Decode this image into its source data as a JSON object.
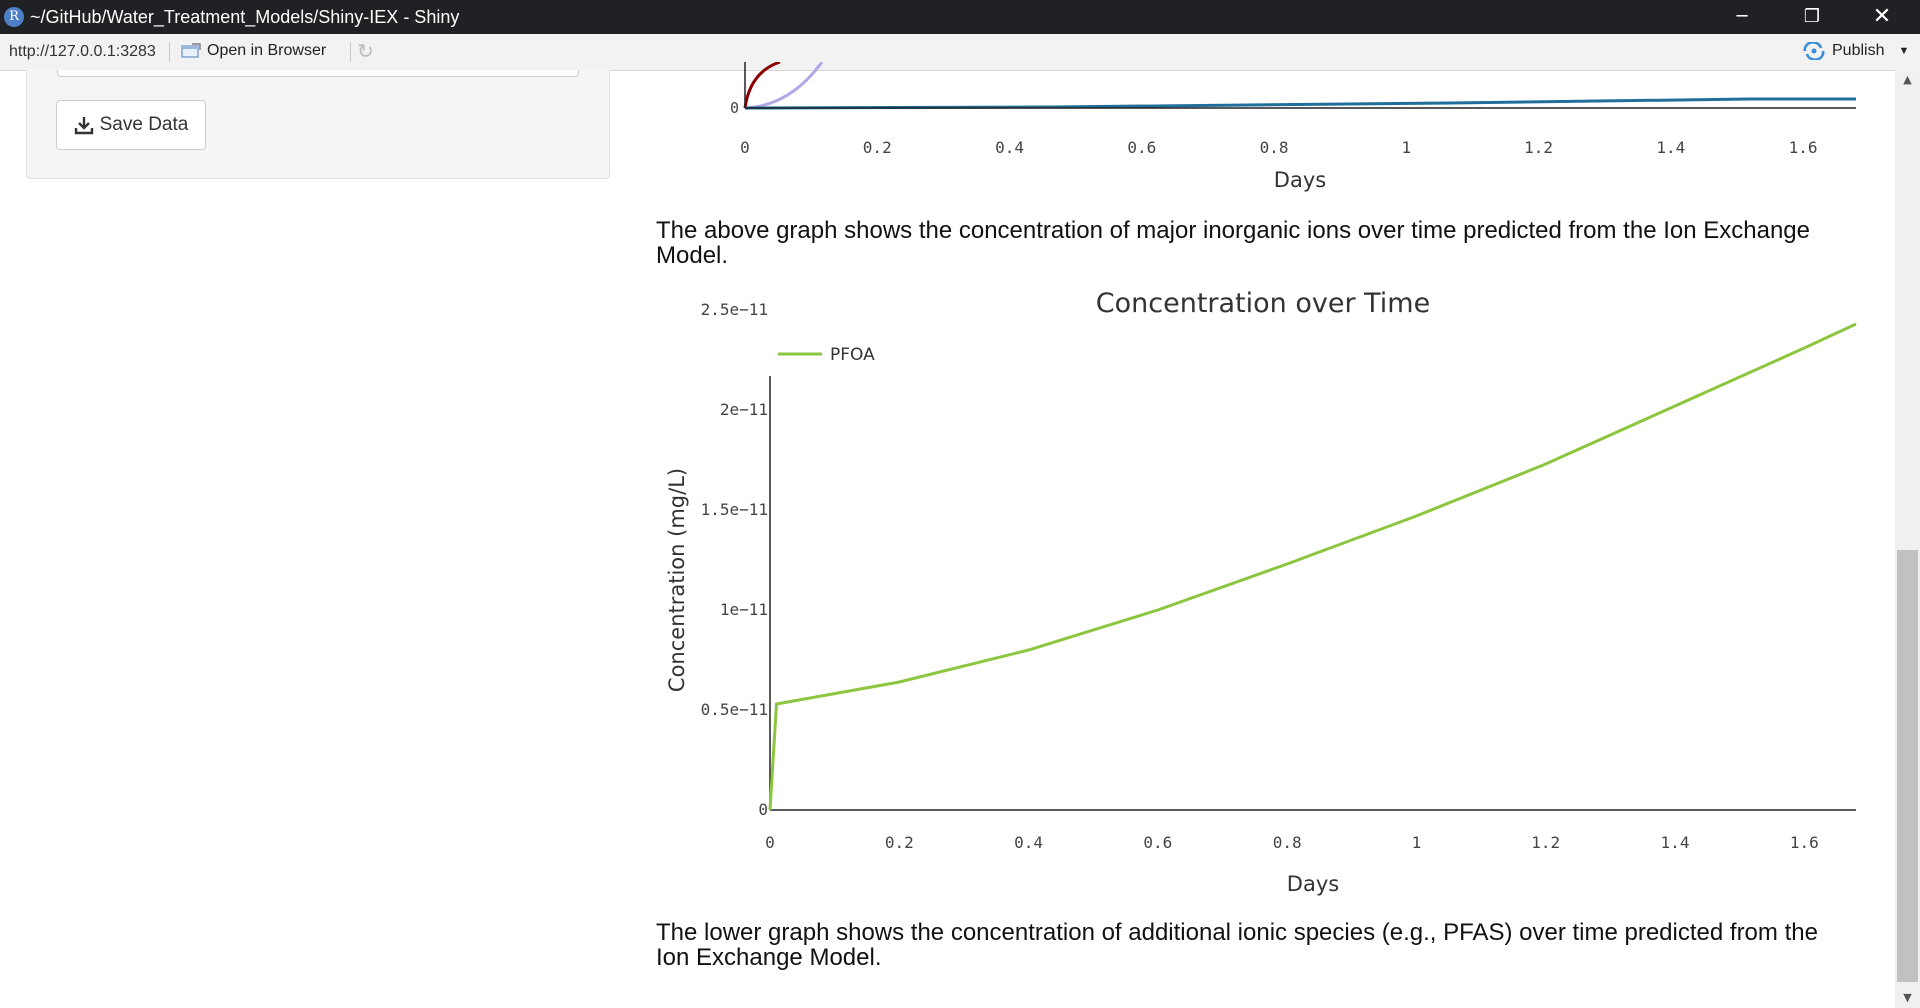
{
  "window": {
    "title": "~/GitHub/Water_Treatment_Models/Shiny-IEX - Shiny",
    "logo_letter": "R"
  },
  "address_bar": {
    "url": "http://127.0.0.1:3283",
    "open_in_browser": "Open in Browser",
    "publish": "Publish"
  },
  "sidebar": {
    "save_button_label": "Save Data"
  },
  "top_chart": {
    "xlabel": "Days",
    "xticks": [
      "0",
      "0.2",
      "0.4",
      "0.6",
      "0.8",
      "1",
      "1.2",
      "1.4",
      "1.6"
    ],
    "ytick_zero": "0",
    "colors": {
      "dark_red": "#8b0000",
      "lavender": "#b4a7e6",
      "steel_blue": "#1f6f9a"
    }
  },
  "caption_top": "The above graph shows the concentration of major inorganic ions over time predicted from the Ion Exchange Model.",
  "chart_data": {
    "type": "line",
    "title": "Concentration over Time",
    "xlabel": "Days",
    "ylabel": "Concentration (mg/L)",
    "xticks": [
      "0",
      "0.2",
      "0.4",
      "0.6",
      "0.8",
      "1",
      "1.2",
      "1.4",
      "1.6"
    ],
    "yticks": [
      "0",
      "0.5e−11",
      "1e−11",
      "1.5e−11",
      "2e−11",
      "2.5e−11"
    ],
    "xlim": [
      0,
      1.68
    ],
    "ylim": [
      0,
      2.5e-11
    ],
    "legend": "top-left",
    "series": [
      {
        "name": "PFOA",
        "color": "#8cc63f",
        "x": [
          0,
          0.01,
          0.2,
          0.4,
          0.6,
          0.8,
          1.0,
          1.2,
          1.4,
          1.6,
          1.68
        ],
        "y": [
          0,
          5.3e-12,
          6.4e-12,
          8e-12,
          1e-11,
          1.23e-11,
          1.47e-11,
          1.73e-11,
          2.02e-11,
          2.31e-11,
          2.43e-11
        ]
      }
    ]
  },
  "caption_bottom": "The lower graph shows the concentration of additional ionic species (e.g., PFAS) over time predicted from the Ion Exchange Model."
}
